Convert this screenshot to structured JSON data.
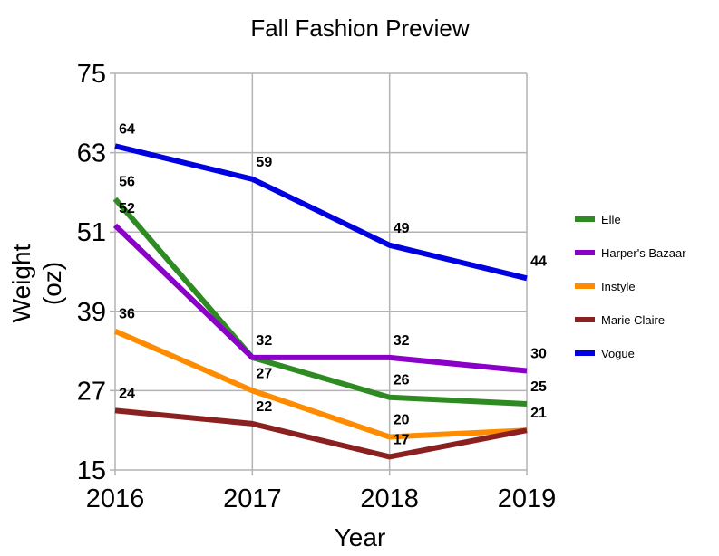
{
  "chart_data": {
    "type": "line",
    "title": "Fall Fashion Preview",
    "xlabel": "Year",
    "ylabel_lines": [
      "Weight",
      "(oz)"
    ],
    "categories": [
      "2016",
      "2017",
      "2018",
      "2019"
    ],
    "ylim": [
      15,
      75
    ],
    "yticks": [
      "15",
      "27",
      "39",
      "51",
      "63",
      "75"
    ],
    "grid": true,
    "legend_position": "right",
    "series": [
      {
        "name": "Elle",
        "color": "#2e8b22",
        "values": [
          56,
          32,
          26,
          25
        ],
        "labels": [
          "56",
          "32",
          "26",
          "25"
        ]
      },
      {
        "name": "Harper's Bazaar",
        "color": "#8b00c8",
        "values": [
          52,
          32,
          32,
          30
        ],
        "labels": [
          "52",
          "32",
          "32",
          "30"
        ]
      },
      {
        "name": "Instyle",
        "color": "#ff8c00",
        "values": [
          36,
          27,
          20,
          21
        ],
        "labels": [
          "36",
          "27",
          "20",
          "21"
        ]
      },
      {
        "name": "Marie Claire",
        "color": "#8b2020",
        "values": [
          24,
          22,
          17,
          21
        ],
        "labels": [
          "24",
          "22",
          "17",
          "21"
        ]
      },
      {
        "name": "Vogue",
        "color": "#0000e0",
        "values": [
          64,
          59,
          49,
          44
        ],
        "labels": [
          "64",
          "59",
          "49",
          "44"
        ]
      }
    ],
    "hidden_labels": [
      [
        false,
        false,
        false,
        false
      ],
      [
        false,
        true,
        false,
        false
      ],
      [
        false,
        false,
        false,
        true
      ],
      [
        false,
        false,
        false,
        false
      ],
      [
        false,
        false,
        false,
        false
      ]
    ]
  }
}
